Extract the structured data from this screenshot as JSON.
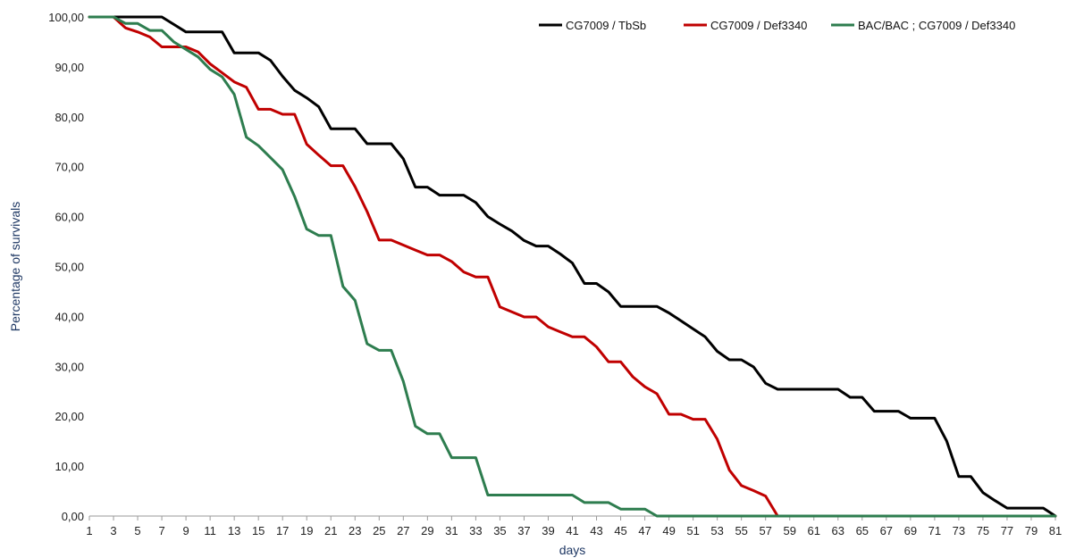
{
  "chart_data": {
    "type": "line",
    "title": "",
    "xlabel": "days",
    "ylabel": "Percentage of survivals",
    "xlim": [
      1,
      81
    ],
    "ylim": [
      0,
      100
    ],
    "grid": false,
    "legend_placement": "top-right",
    "x_tick_labels": [
      "1",
      "3",
      "5",
      "7",
      "9",
      "11",
      "13",
      "15",
      "17",
      "19",
      "21",
      "23",
      "25",
      "27",
      "29",
      "31",
      "33",
      "35",
      "37",
      "39",
      "41",
      "43",
      "45",
      "47",
      "49",
      "51",
      "53",
      "55",
      "57",
      "59",
      "61",
      "63",
      "65",
      "67",
      "69",
      "71",
      "73",
      "75",
      "77",
      "79",
      "81"
    ],
    "y_tick_labels": [
      "0,00",
      "10,00",
      "20,00",
      "30,00",
      "40,00",
      "50,00",
      "60,00",
      "70,00",
      "80,00",
      "90,00",
      "100,00"
    ],
    "x": [
      1,
      2,
      3,
      4,
      5,
      6,
      7,
      8,
      9,
      10,
      11,
      12,
      13,
      14,
      15,
      16,
      17,
      18,
      19,
      20,
      21,
      22,
      23,
      24,
      25,
      26,
      27,
      28,
      29,
      30,
      31,
      32,
      33,
      34,
      35,
      36,
      37,
      38,
      39,
      40,
      41,
      42,
      43,
      44,
      45,
      46,
      47,
      48,
      49,
      50,
      51,
      52,
      53,
      54,
      55,
      56,
      57,
      58,
      59,
      60,
      61,
      62,
      63,
      64,
      65,
      66,
      67,
      68,
      69,
      70,
      71,
      72,
      73,
      74,
      75,
      76,
      77,
      78,
      79,
      80,
      81
    ],
    "series": [
      {
        "name": "CG7009 / TbSb",
        "color": "#000000",
        "values": [
          100,
          100,
          100,
          100,
          100,
          100,
          100,
          98.5,
          97,
          97,
          97,
          97,
          92.8,
          92.8,
          92.8,
          91.3,
          88.1,
          85.3,
          83.8,
          82,
          77.6,
          77.6,
          77.6,
          74.6,
          74.6,
          74.6,
          71.6,
          65.9,
          65.9,
          64.3,
          64.3,
          64.3,
          62.8,
          60,
          58.5,
          57.1,
          55.2,
          54.1,
          54.1,
          52.5,
          50.7,
          46.6,
          46.6,
          44.9,
          42,
          42,
          42,
          42,
          40.7,
          39.1,
          37.5,
          35.9,
          33,
          31.3,
          31.3,
          29.9,
          26.6,
          25.4,
          25.4,
          25.4,
          25.4,
          25.4,
          25.4,
          23.8,
          23.8,
          21,
          21,
          21,
          19.6,
          19.6,
          19.6,
          15,
          7.9,
          7.9,
          4.7,
          3.1,
          1.6,
          1.6,
          1.6,
          1.6,
          0
        ]
      },
      {
        "name": "CG7009 / Def3340",
        "color": "#c00000",
        "values": [
          100,
          100,
          100,
          97.8,
          97,
          96,
          94,
          94,
          94,
          93,
          90.6,
          88.8,
          87,
          85.9,
          81.5,
          81.5,
          80.5,
          80.5,
          74.5,
          72.3,
          70.2,
          70.2,
          66,
          61,
          55.3,
          55.3,
          54.3,
          53.3,
          52.3,
          52.3,
          51,
          48.9,
          47.9,
          47.9,
          41.9,
          40.9,
          39.9,
          39.9,
          37.9,
          36.9,
          35.9,
          35.9,
          33.9,
          30.9,
          30.9,
          27.9,
          25.9,
          24.5,
          20.4,
          20.4,
          19.4,
          19.4,
          15.4,
          9.2,
          6.1,
          5.1,
          4,
          0,
          0,
          0,
          0,
          0,
          0,
          0,
          0,
          0,
          0,
          0,
          0,
          0,
          0,
          0,
          0,
          0,
          0,
          0,
          0,
          0,
          0,
          0,
          0
        ]
      },
      {
        "name": "BAC/BAC ; CG7009 / Def3340",
        "color": "#2e7d4f",
        "values": [
          100,
          100,
          100,
          98.7,
          98.7,
          97.3,
          97.3,
          95,
          93.5,
          92,
          89.5,
          88,
          84.5,
          75.9,
          74.2,
          71.8,
          69.4,
          64,
          57.5,
          56.2,
          56.2,
          46,
          43.2,
          34.5,
          33.2,
          33.2,
          27,
          18,
          16.5,
          16.5,
          11.7,
          11.7,
          11.7,
          4.2,
          4.2,
          4.2,
          4.2,
          4.2,
          4.2,
          4.2,
          4.2,
          2.7,
          2.7,
          2.7,
          1.4,
          1.4,
          1.4,
          0,
          0,
          0,
          0,
          0,
          0,
          0,
          0,
          0,
          0,
          0,
          0,
          0,
          0,
          0,
          0,
          0,
          0,
          0,
          0,
          0,
          0,
          0,
          0,
          0,
          0,
          0,
          0,
          0,
          0,
          0,
          0,
          0,
          0
        ]
      }
    ]
  }
}
